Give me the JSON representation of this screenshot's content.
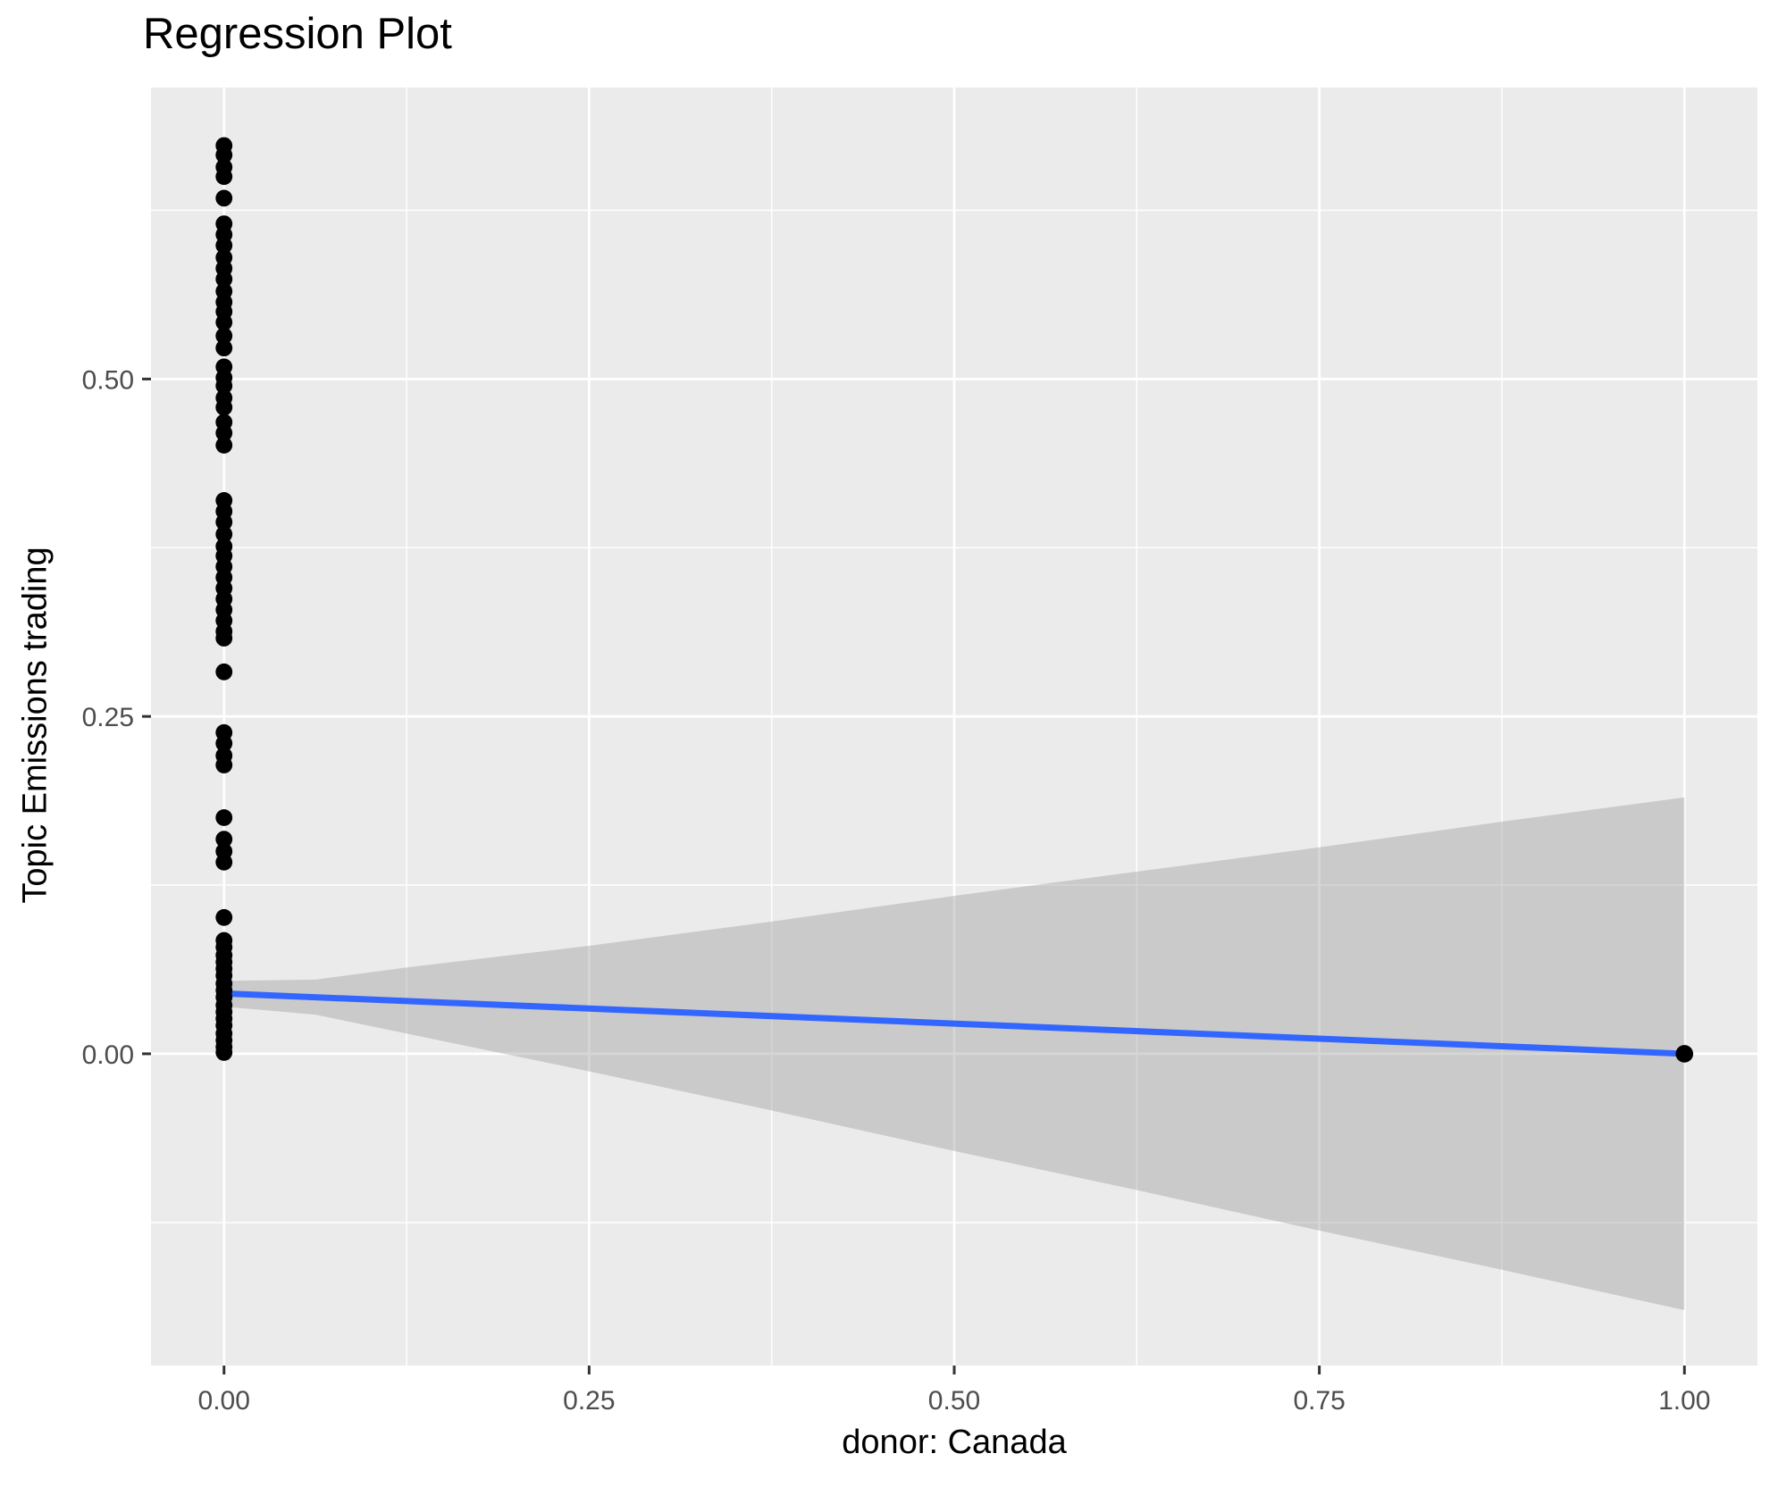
{
  "chart_data": {
    "type": "scatter",
    "title": "Regression Plot",
    "xlabel": "donor: Canada",
    "ylabel": "Topic Emissions trading",
    "xlim": [
      -0.05,
      1.05
    ],
    "ylim": [
      -0.231,
      0.716
    ],
    "grid": true,
    "legend": false,
    "x_ticks": {
      "values": [
        0,
        0.25,
        0.5,
        0.75,
        1.0
      ],
      "labels": [
        "0.00",
        "0.25",
        "0.50",
        "0.75",
        "1.00"
      ]
    },
    "y_ticks": {
      "values": [
        0,
        0.25,
        0.5
      ],
      "labels": [
        "0.00",
        "0.25",
        "0.50"
      ]
    },
    "x_minor": [
      0.125,
      0.375,
      0.625,
      0.875
    ],
    "y_minor": [
      -0.125,
      0.125,
      0.375,
      0.625
    ],
    "points": {
      "x0_y_values": [
        0.673,
        0.666,
        0.657,
        0.65,
        0.634,
        0.615,
        0.607,
        0.599,
        0.59,
        0.582,
        0.574,
        0.565,
        0.557,
        0.55,
        0.542,
        0.532,
        0.523,
        0.509,
        0.501,
        0.495,
        0.486,
        0.479,
        0.468,
        0.46,
        0.451,
        0.41,
        0.402,
        0.394,
        0.385,
        0.376,
        0.369,
        0.361,
        0.353,
        0.345,
        0.337,
        0.329,
        0.321,
        0.313,
        0.308,
        0.283,
        0.238,
        0.23,
        0.221,
        0.214,
        0.175,
        0.159,
        0.15,
        0.142,
        0.101,
        0.084,
        0.079,
        0.073,
        0.068,
        0.063,
        0.058,
        0.052,
        0.047,
        0.042,
        0.036,
        0.031,
        0.026,
        0.021,
        0.015,
        0.01,
        0.005,
        0.001
      ],
      "extra": [
        [
          1.0,
          0.0
        ]
      ]
    },
    "regression_line": {
      "x": [
        0,
        1
      ],
      "y": [
        0.0447,
        0.0
      ]
    },
    "ribbon": {
      "x": [
        0.0,
        0.0625,
        0.125,
        0.25,
        0.375,
        0.5,
        0.625,
        0.75,
        0.875,
        1.0
      ],
      "upper": [
        0.054,
        0.055,
        0.064,
        0.08,
        0.098,
        0.117,
        0.135,
        0.153,
        0.172,
        0.19
      ],
      "lower": [
        0.035,
        0.029,
        0.015,
        -0.013,
        -0.042,
        -0.072,
        -0.101,
        -0.131,
        -0.16,
        -0.19
      ]
    },
    "colors": {
      "panel": "#EBEBEB",
      "grid": "#FFFFFF",
      "ribbon": "rgba(153,153,153,0.4)",
      "line": "#3366FF",
      "point": "#000000",
      "tick_label": "#4D4D4D",
      "tick_mark": "#333333",
      "text": "#000000"
    }
  }
}
